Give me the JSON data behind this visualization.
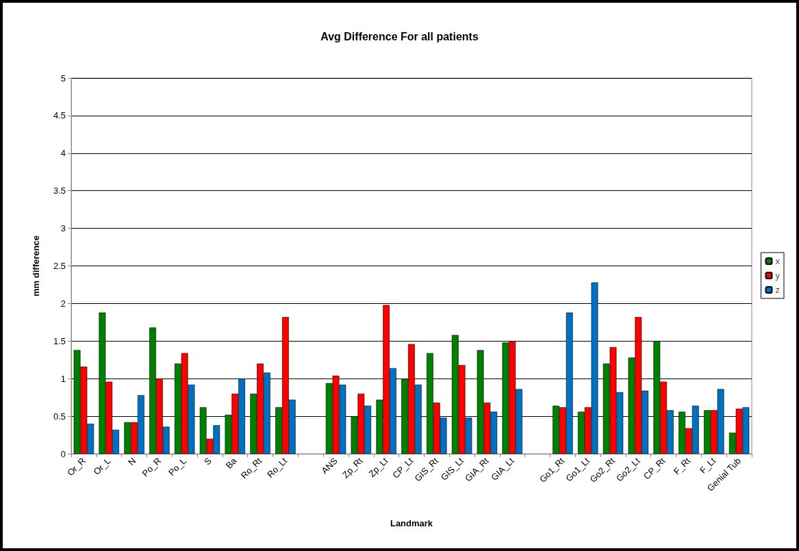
{
  "chart_data": {
    "type": "bar",
    "title": "Avg Difference For all patients",
    "xlabel": "Landmark",
    "ylabel": "mm difference",
    "categories": [
      "Or_R",
      "Or_L",
      "N",
      "Po_R",
      "Po_L",
      "S",
      "Ba",
      "Ro_Rt",
      "Ro_Lt",
      null,
      "ANS",
      "Zp_Rt",
      "Zp_Lt",
      "CP_Lt",
      "GIS_Rt",
      "GIS_Lt",
      "GIA_Rt",
      "GIA_Lt",
      null,
      "Go1_Rt",
      "Go1_Lt",
      "Go2_Rt",
      "Go2_Lt",
      "CP_Rt",
      "F_Rt",
      "F_Lt",
      "Genial Tub"
    ],
    "series": [
      {
        "name": "x",
        "color": "#008000",
        "values": [
          1.38,
          1.88,
          0.42,
          1.68,
          1.2,
          0.62,
          0.52,
          0.8,
          0.62,
          null,
          0.94,
          0.5,
          0.72,
          1.0,
          1.34,
          1.58,
          1.38,
          1.48,
          null,
          0.64,
          0.56,
          1.2,
          1.28,
          1.5,
          0.56,
          0.58,
          0.28
        ]
      },
      {
        "name": "y",
        "color": "#ff0000",
        "values": [
          1.16,
          0.96,
          0.42,
          1.0,
          1.34,
          0.2,
          0.8,
          1.2,
          1.82,
          null,
          1.04,
          0.8,
          1.98,
          1.46,
          0.68,
          1.18,
          0.68,
          1.5,
          null,
          0.62,
          0.62,
          1.42,
          1.82,
          0.96,
          0.34,
          0.58,
          0.6
        ]
      },
      {
        "name": "z",
        "color": "#0070c0",
        "values": [
          0.4,
          0.32,
          0.78,
          0.36,
          0.92,
          0.38,
          1.0,
          1.08,
          0.72,
          null,
          0.92,
          0.64,
          1.14,
          0.92,
          0.48,
          0.48,
          0.56,
          0.86,
          null,
          1.88,
          2.28,
          0.82,
          0.84,
          0.58,
          0.64,
          0.86,
          0.62
        ]
      }
    ],
    "ylim": [
      0,
      5
    ],
    "yticks": [
      0,
      0.5,
      1,
      1.5,
      2,
      2.5,
      3,
      3.5,
      4,
      4.5,
      5
    ],
    "grid": "y",
    "legend": "right"
  }
}
